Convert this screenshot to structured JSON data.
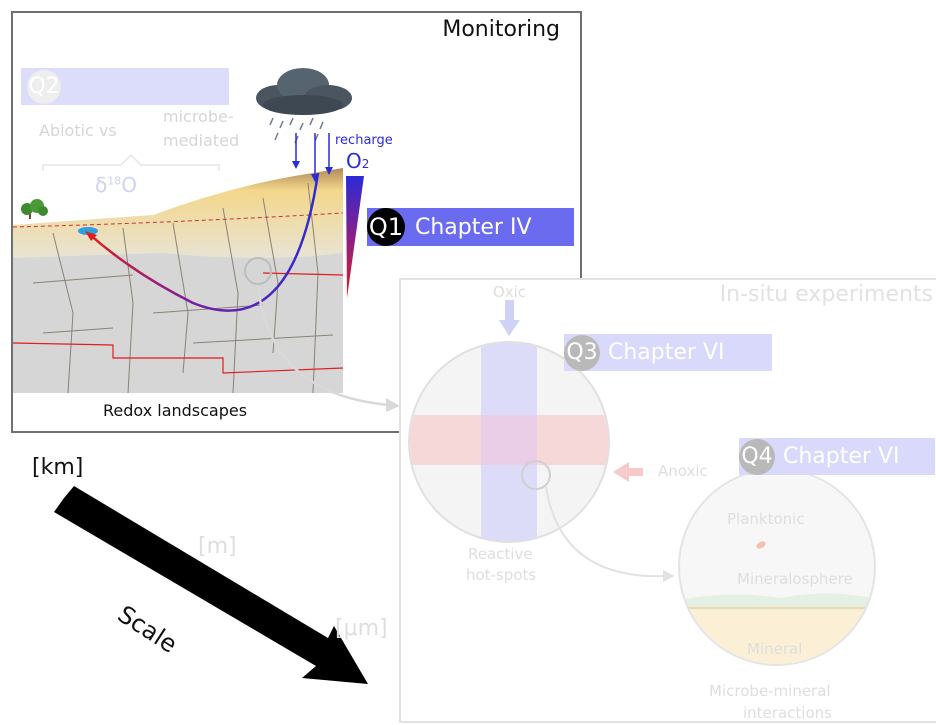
{
  "monitoring": {
    "title": "Monitoring",
    "caption": "Redox landscapes",
    "recharge_label": "recharge",
    "o2_label": "O",
    "o2_sub": "2",
    "q1": {
      "num": "Q1",
      "label": "Chapter IV"
    },
    "q2": {
      "num": "Q2",
      "line1a": "Abiotic vs",
      "line1b": "microbe-",
      "line2": "mediated",
      "isotope_delta": "δ",
      "isotope_sup": "18",
      "isotope_el": "O"
    }
  },
  "insitu": {
    "title": "In-situ experiments",
    "oxic": "Oxic",
    "anoxic": "Anoxic",
    "reactive1": "Reactive",
    "reactive2": "hot-spots",
    "q3": {
      "num": "Q3",
      "label": "Chapter VI"
    },
    "q4": {
      "num": "Q4",
      "label": "Chapter VI"
    },
    "planktonic": "Planktonic",
    "mineralosphere": "Mineralosphere",
    "mineral": "Mineral",
    "microbe1": "Microbe-mineral",
    "microbe2": "interactions"
  },
  "scale": {
    "label": "Scale",
    "km": "[km]",
    "m": "[m]",
    "um": "[μm]"
  },
  "colors": {
    "chapter_blue": "#6b6bf0",
    "chapter_blue_faded": "#d9d9fb",
    "oxic_blue": "#2b2bd6",
    "anoxic_red": "#e01e1e",
    "sediment": "#f2d27a",
    "bedrock": "#d4d4d4"
  }
}
